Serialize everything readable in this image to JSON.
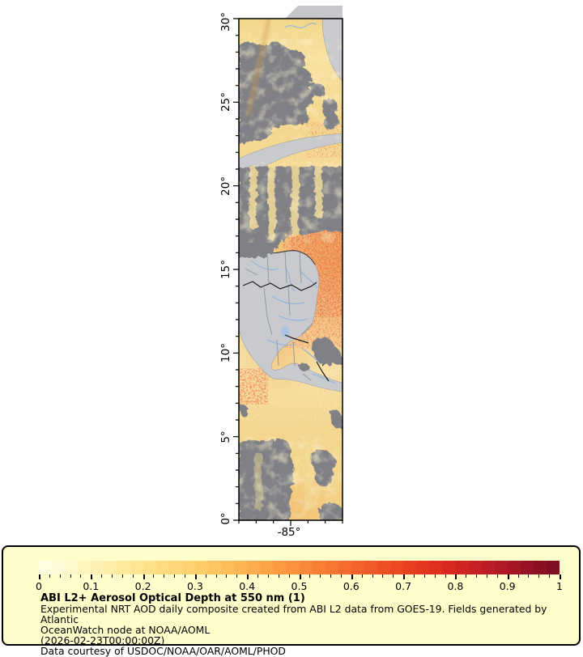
{
  "map": {
    "yticks": [
      "30°",
      "25°",
      "20°",
      "15°",
      "10°",
      "5°",
      "0°"
    ],
    "xtick": "-85°",
    "colors": {
      "ocean_base": "#f5dc97",
      "cloud_gray": "#808186",
      "land_gray": "#c9cacd",
      "river_blue": "#8fb3de",
      "admin_border_gray": "#8f939b",
      "country_border_black": "#1c1c1c",
      "hot_aod_red": "#cc2a1a"
    }
  },
  "legend": {
    "background": "#ffffcc",
    "title": "ABI L2+ Aerosol Optical Depth at 550 nm (1)",
    "lines": [
      "Experimental NRT AOD daily composite created from ABI L2 data from GOES-19. Fields generated by Atlantic",
      "OceanWatch node at NOAA/AOML",
      "(2026-02-23T00:00:00Z)",
      "Data courtesy of USDOC/NOAA/OAR/AOML/PHOD"
    ],
    "tick_labels": [
      "0",
      "0.1",
      "0.2",
      "0.3",
      "0.4",
      "0.5",
      "0.6",
      "0.7",
      "0.8",
      "0.9",
      "1"
    ],
    "colorbar_stops": [
      [
        0.0,
        "#ffffe8"
      ],
      [
        0.05,
        "#fffad2"
      ],
      [
        0.1,
        "#fff3b9"
      ],
      [
        0.15,
        "#ffeca3"
      ],
      [
        0.2,
        "#fee28d"
      ],
      [
        0.25,
        "#fed97c"
      ],
      [
        0.3,
        "#fecf6c"
      ],
      [
        0.35,
        "#fec25d"
      ],
      [
        0.4,
        "#fdb250"
      ],
      [
        0.45,
        "#fd9f44"
      ],
      [
        0.5,
        "#fb8c3c"
      ],
      [
        0.55,
        "#f87a33"
      ],
      [
        0.6,
        "#f5682d"
      ],
      [
        0.65,
        "#f05527"
      ],
      [
        0.7,
        "#ea4322"
      ],
      [
        0.75,
        "#e2331e"
      ],
      [
        0.8,
        "#d42621"
      ],
      [
        0.85,
        "#c11e26"
      ],
      [
        0.9,
        "#ab1726"
      ],
      [
        0.95,
        "#921124"
      ],
      [
        1.0,
        "#7a0c21"
      ]
    ],
    "value_range": [
      0,
      1
    ]
  }
}
